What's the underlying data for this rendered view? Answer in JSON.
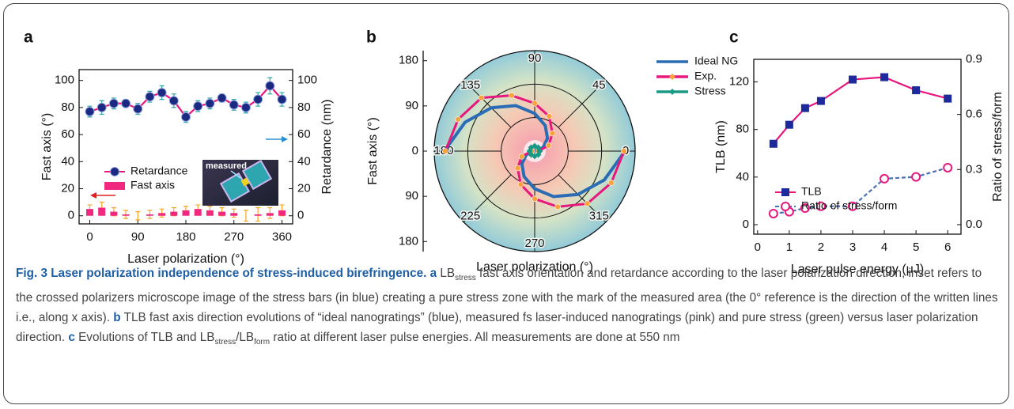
{
  "chart_data": [
    {
      "type": "combo",
      "panel": "a",
      "xlabel": "Laser polarization (°)",
      "ylabel": "Fast axis (°)",
      "y2label": "Retardance (nm)",
      "inset_label": "measured",
      "x": [
        0,
        22.5,
        45,
        67.5,
        90,
        112.5,
        135,
        157.5,
        180,
        202.5,
        225,
        247.5,
        270,
        292.5,
        315,
        337.5,
        360
      ],
      "xlim": [
        -20,
        380
      ],
      "xticks": [
        0,
        90,
        180,
        270,
        360
      ],
      "ylim": [
        -6,
        108
      ],
      "yticks": [
        0,
        20,
        40,
        60,
        80,
        100
      ],
      "y2lim": [
        -6,
        108
      ],
      "y2ticks": [
        0,
        20,
        40,
        60,
        80,
        100
      ],
      "series": [
        {
          "name": "Retardance",
          "axis": "y2",
          "kind": "line",
          "marker": "circle",
          "color": "#e8177d",
          "marker_color": "#1b2a80",
          "error_color": "#2fa5a5",
          "values": [
            77,
            80,
            83,
            83,
            79,
            88,
            91,
            85,
            73,
            81,
            83,
            87,
            82,
            80,
            86,
            96,
            86
          ],
          "errors": [
            4,
            5,
            4,
            3,
            4,
            4,
            5,
            5,
            4,
            4,
            4,
            3,
            4,
            4,
            5,
            6,
            5
          ]
        },
        {
          "name": "Fast axis",
          "axis": "y",
          "kind": "bar",
          "color": "#f0287f",
          "error_color": "#f5a623",
          "values": [
            5,
            6,
            3,
            1,
            0,
            1,
            2,
            3,
            4,
            5,
            4,
            3,
            2,
            0,
            1,
            2,
            4
          ],
          "errors": [
            3,
            4,
            3,
            3,
            3,
            3,
            3,
            3,
            3,
            3,
            3,
            3,
            3,
            4,
            5,
            4,
            4
          ]
        }
      ]
    },
    {
      "type": "polar",
      "panel": "b",
      "xlabel": "Laser polarization (°)",
      "ylabel": "Fast axis (°)",
      "ylim": [
        -200,
        200
      ],
      "yticks": [
        {
          "value": -180,
          "label": "180"
        },
        {
          "value": -90,
          "label": "90"
        },
        0,
        90,
        180
      ],
      "angle_ticks": [
        0,
        45,
        90,
        135,
        180,
        225,
        270,
        315
      ],
      "series": [
        {
          "name": "Ideal NG",
          "color": "#2a6db5",
          "theta": [
            0,
            22.5,
            45,
            67.5,
            90,
            112.5,
            135,
            157.5,
            180,
            null,
            180,
            202.5,
            225,
            247.5,
            270,
            292.5,
            315,
            337.5,
            360
          ],
          "values": [
            0,
            18,
            36,
            55,
            75,
            98,
            122,
            150,
            180,
            null,
            0,
            18,
            36,
            55,
            75,
            98,
            122,
            150,
            180
          ]
        },
        {
          "name": "Exp.",
          "color": "#e8177d",
          "marker": "circle",
          "marker_color": "#f7a23b",
          "theta": [
            0,
            22.5,
            45,
            67.5,
            90,
            112.5,
            135,
            157.5,
            180,
            null,
            180,
            202.5,
            225,
            247.5,
            270,
            292.5,
            315,
            337.5,
            360
          ],
          "values": [
            8,
            30,
            50,
            75,
            95,
            120,
            150,
            165,
            178,
            null,
            6,
            28,
            48,
            72,
            95,
            120,
            148,
            165,
            178
          ]
        },
        {
          "name": "Stress",
          "color": "#1a9a85",
          "marker": "diamond",
          "marker_color": "#1a9a85",
          "theta": [
            0,
            45,
            90,
            135,
            180,
            225,
            270,
            315,
            360
          ],
          "values": [
            10,
            10,
            10,
            10,
            10,
            10,
            10,
            10,
            10
          ]
        }
      ]
    },
    {
      "type": "line",
      "panel": "c",
      "xlabel": "Laser pulse energy (μJ)",
      "ylabel": "TLB (nm)",
      "y2label": "Ratio of stress/form",
      "x": [
        0.5,
        1,
        1.5,
        2,
        3,
        4,
        5,
        6
      ],
      "xlim": [
        -0.12,
        6.42
      ],
      "xticks": [
        0,
        1,
        2,
        3,
        4,
        5,
        6
      ],
      "ylim": [
        -8,
        139
      ],
      "yticks": [
        0,
        40,
        80,
        120
      ],
      "y2lim": [
        -0.052,
        0.9
      ],
      "y2ticks": [
        {
          "value": 0,
          "label": "0.0"
        },
        0.3,
        0.6,
        0.9
      ],
      "series": [
        {
          "name": "TLB",
          "axis": "y",
          "kind": "line",
          "marker": "square",
          "color": "#e8177d",
          "marker_color": "#1e2a9c",
          "values": [
            68,
            84,
            98,
            104,
            122,
            124,
            113,
            106
          ]
        },
        {
          "name": "Ratio of stress/form",
          "axis": "y2",
          "kind": "line",
          "dash": true,
          "marker": "open-circle",
          "color": "#4a6fb5",
          "marker_color": "#e8177d",
          "values": [
            0.06,
            0.07,
            0.09,
            0.1,
            0.1,
            0.25,
            0.26,
            0.31
          ]
        }
      ]
    }
  ],
  "caption": {
    "parts": [
      "Fig. 3 Laser polarization independence of stress-induced birefringence.",
      "a",
      "LB",
      "stress",
      "fast axis orientation and retardance according to the laser polarization direction; inset refers to the crossed polarizers microscope image of the stress bars (in blue) creating a pure stress zone with the mark of the measured area (the 0° reference is the direction of the written lines i.e., along x axis).",
      "b",
      "TLB fast axis direction evolutions of “ideal nanogratings” (blue), measured fs laser-induced nanogratings (pink) and pure stress (green) versus laser polarization direction.",
      "c",
      "Evolutions of TLB and LB",
      "stress",
      "/LB",
      "form",
      "ratio at different laser pulse energies. All measurements are done at 550 nm"
    ]
  }
}
